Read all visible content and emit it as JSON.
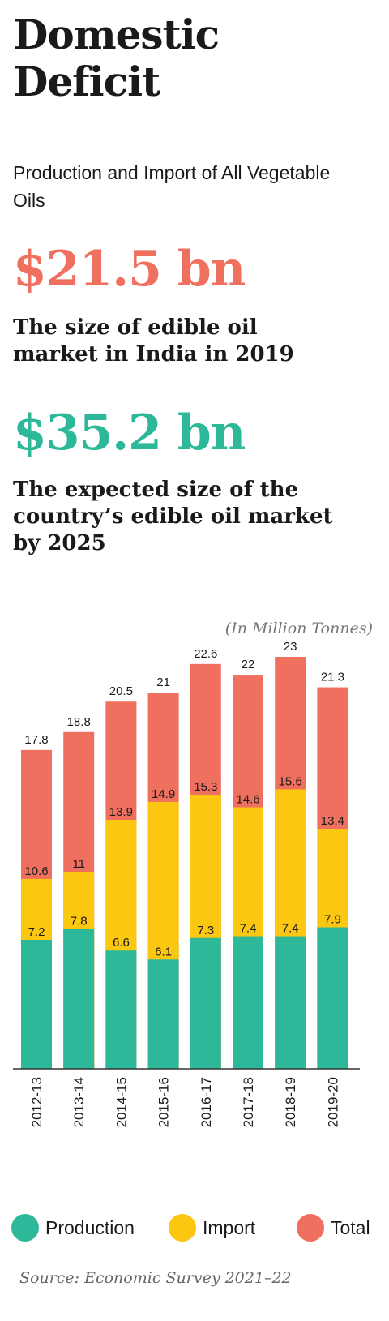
{
  "header": {
    "title_line1": "Domestic",
    "title_line2": "Deficit",
    "subtitle": "Production and Import of All Vegetable Oils"
  },
  "stats": [
    {
      "value": "$21.5 bn",
      "desc_line1": "The size of edible oil",
      "desc_line2": "market in India in 2019",
      "desc_line3": "",
      "color": "#f07060"
    },
    {
      "value": "$35.2 bn",
      "desc_line1": "The expected size of the",
      "desc_line2": "country’s edible oil market",
      "desc_line3": "by 2025",
      "color": "#2db89a"
    }
  ],
  "units": "(In Million Tonnes)",
  "source": "Source: Economic Survey 2021–22",
  "colors": {
    "production": "#2db89a",
    "import": "#fcc710",
    "total": "#f07060"
  },
  "chart_data": {
    "type": "bar",
    "stacked": true,
    "categories": [
      "2012-13",
      "2013-14",
      "2014-15",
      "2015-16",
      "2016-17",
      "2017-18",
      "2018-19",
      "2019-20"
    ],
    "series": [
      {
        "name": "Production",
        "values": [
          7.2,
          7.8,
          6.6,
          6.1,
          7.3,
          7.4,
          7.4,
          7.9
        ],
        "color": "#2db89a"
      },
      {
        "name": "Import",
        "values": [
          10.6,
          11,
          13.9,
          14.9,
          15.3,
          14.6,
          15.6,
          13.4
        ],
        "color": "#fcc710"
      },
      {
        "name": "Total",
        "values": [
          17.8,
          18.8,
          20.5,
          21,
          22.6,
          22,
          23,
          21.3
        ],
        "color": "#f07060"
      }
    ],
    "ylim": [
      0,
      23
    ],
    "grid": false,
    "legend": "bottom"
  }
}
